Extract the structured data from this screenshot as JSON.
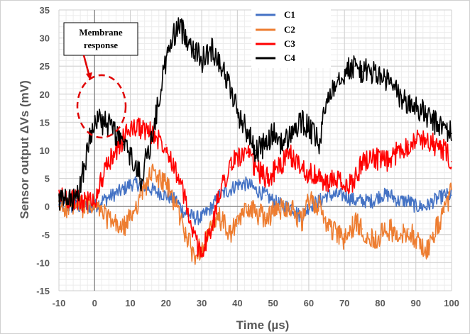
{
  "chart_data": {
    "type": "line",
    "title": "",
    "xlabel": "Time (µs)",
    "ylabel": "Sensor output  ΔVs (mV)",
    "xlim": [
      -10,
      100
    ],
    "ylim": [
      -15,
      35
    ],
    "x_ticks": [
      -10,
      0,
      10,
      20,
      30,
      40,
      50,
      60,
      70,
      80,
      90,
      100
    ],
    "y_ticks": [
      -15,
      -10,
      -5,
      0,
      5,
      10,
      15,
      20,
      25,
      30,
      35
    ],
    "x_tick_labels": [
      "-10",
      "0",
      "10",
      "20",
      "30",
      "40",
      "50",
      "60",
      "70",
      "80",
      "90",
      "100"
    ],
    "y_tick_labels": [
      "-15",
      "-10",
      "-5",
      "0",
      "5",
      "10",
      "15",
      "20",
      "25",
      "30",
      "35"
    ],
    "grid": true,
    "legend_position": "top-center",
    "annotation": {
      "lines": [
        "Membrane",
        "response"
      ],
      "target_x": 0,
      "target_y": 16
    },
    "x": [
      -10,
      -5,
      0,
      2,
      5,
      8,
      10,
      13,
      16,
      20,
      23,
      25,
      28,
      30,
      33,
      35,
      38,
      40,
      43,
      45,
      48,
      50,
      53,
      55,
      58,
      60,
      63,
      65,
      68,
      70,
      73,
      75,
      78,
      80,
      83,
      85,
      88,
      90,
      93,
      95,
      98,
      100
    ],
    "series": [
      {
        "name": "C1",
        "color": "#4472C4",
        "values": [
          0,
          0,
          0,
          1,
          2,
          3,
          4,
          4,
          3,
          2,
          1,
          -1,
          -2,
          -2,
          0,
          2,
          3,
          4,
          4,
          3,
          2,
          1,
          0,
          0,
          -2,
          0,
          1,
          2,
          2,
          2,
          1,
          1,
          1,
          2,
          2,
          1,
          1,
          0,
          0,
          1,
          2,
          2
        ]
      },
      {
        "name": "C2",
        "color": "#ED7D31",
        "values": [
          0,
          0,
          0,
          -1,
          -3,
          -4,
          -2,
          2,
          6,
          4,
          0,
          -4,
          -9,
          -7,
          -4,
          -2,
          -5,
          -3,
          0,
          -1,
          -2,
          -1,
          0,
          0,
          -3,
          1,
          0,
          -3,
          -5,
          -6,
          -3,
          -4,
          -6,
          -5,
          -4,
          -6,
          -4,
          -6,
          -8,
          -5,
          -1,
          3
        ]
      },
      {
        "name": "C3",
        "color": "#FF0000",
        "values": [
          2,
          1,
          1,
          5,
          9,
          12,
          14,
          14,
          13,
          11,
          6,
          2,
          -6,
          -8,
          -4,
          3,
          7,
          9,
          9,
          7,
          5,
          6,
          8,
          9,
          7,
          6,
          5,
          4,
          5,
          3,
          5,
          8,
          9,
          8,
          8,
          10,
          11,
          12,
          12,
          11,
          10,
          8
        ]
      },
      {
        "name": "C4",
        "color": "#000000",
        "values": [
          1,
          1,
          16,
          15,
          14,
          11,
          9,
          5,
          12,
          26,
          32,
          31,
          28,
          26,
          28,
          26,
          21,
          17,
          13,
          10,
          11,
          13,
          11,
          13,
          15,
          14,
          11,
          19,
          23,
          24,
          25,
          24,
          24,
          23,
          22,
          20,
          18,
          18,
          16,
          15,
          14,
          13
        ]
      }
    ]
  }
}
